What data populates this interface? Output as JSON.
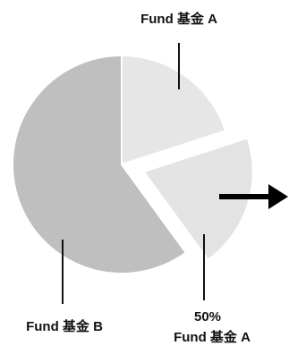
{
  "chart_data": {
    "type": "pie",
    "categories": [
      "Fund 基金 A",
      "Fund 基金 A",
      "Fund 基金 B"
    ],
    "values": [
      20,
      20,
      60
    ],
    "colors": [
      "#e6e6e6",
      "#e3e3e3",
      "#bfbfbf"
    ],
    "exploded": [
      false,
      true,
      false
    ],
    "annotation": "50%"
  }
}
